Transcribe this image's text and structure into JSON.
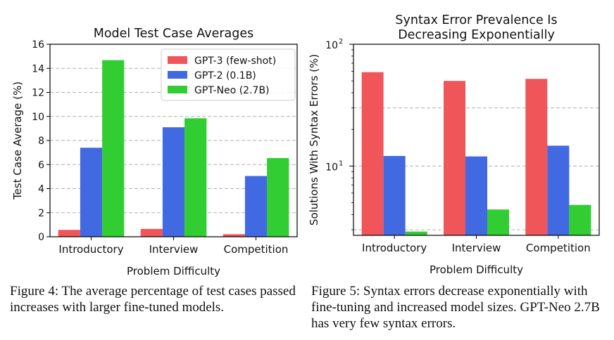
{
  "chart_data": [
    {
      "type": "bar",
      "title": "Model Test Case Averages",
      "title_lines": [
        "Model Test Case Averages"
      ],
      "xlabel": "Problem Difficulty",
      "ylabel": "Test Case Average (%)",
      "categories": [
        "Introductory",
        "Interview",
        "Competition"
      ],
      "yscale": "linear",
      "ylim": [
        0,
        16
      ],
      "yticks": [
        0,
        2,
        4,
        6,
        8,
        10,
        12,
        14,
        16
      ],
      "ytick_labels": [
        "0",
        "2",
        "4",
        "6",
        "8",
        "10",
        "12",
        "14",
        "16"
      ],
      "grid": true,
      "legend_position": "top-right",
      "series": [
        {
          "name": "GPT-3 (few-shot)",
          "color": "#f05559",
          "values": [
            0.57,
            0.65,
            0.21
          ]
        },
        {
          "name": "GPT-2 (0.1B)",
          "color": "#4169e1",
          "values": [
            7.4,
            9.1,
            5.05
          ]
        },
        {
          "name": "GPT-Neo (2.7B)",
          "color": "#32cd32",
          "values": [
            14.68,
            9.85,
            6.54
          ]
        }
      ]
    },
    {
      "type": "bar",
      "title": "Syntax Error Prevalence Is Decreasing Exponentially",
      "title_lines": [
        "Syntax Error Prevalence Is",
        "Decreasing Exponentially"
      ],
      "xlabel": "Problem Difficulty",
      "ylabel": "Solutions With Syntax Errors (%)",
      "categories": [
        "Introductory",
        "Interview",
        "Competition"
      ],
      "yscale": "log",
      "ylim": [
        2.7,
        100
      ],
      "major_ticks": [
        10,
        100
      ],
      "major_tick_base": "10",
      "major_tick_exponents": [
        "1",
        "2"
      ],
      "grid_values": [
        3,
        10,
        30
      ],
      "grid": true,
      "series": [
        {
          "name": "GPT-3 (few-shot)",
          "color": "#f05559",
          "values": [
            59,
            50,
            52
          ]
        },
        {
          "name": "GPT-2 (0.1B)",
          "color": "#4169e1",
          "values": [
            12.1,
            12.0,
            14.7
          ]
        },
        {
          "name": "GPT-Neo (2.7B)",
          "color": "#32cd32",
          "values": [
            2.9,
            4.4,
            4.8
          ]
        }
      ]
    }
  ],
  "captions": {
    "left": "Figure 4: The average percentage of test cases passed increases with larger fine-tuned models.",
    "right": "Figure 5: Syntax errors decrease exponentially with fine-tuning and increased model sizes. GPT-Neo 2.7B has very few syntax errors."
  }
}
